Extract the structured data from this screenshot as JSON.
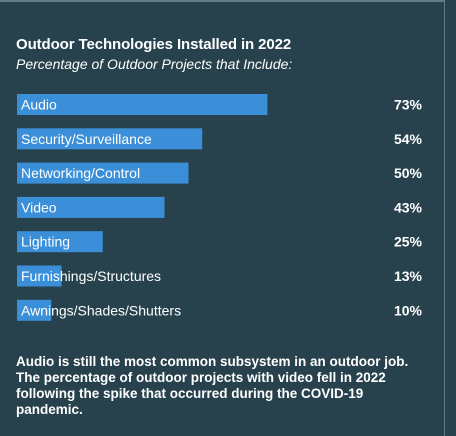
{
  "colors": {
    "background": "#27424d",
    "bar": "#3a8fd8",
    "text": "#ffffff",
    "rule": "#5f7d88"
  },
  "chart_data": {
    "type": "bar",
    "orientation": "horizontal",
    "title": "Outdoor Technologies Installed in 2022",
    "subtitle": "Percentage of Outdoor Projects that Include:",
    "categories": [
      "Audio",
      "Security/Surveillance",
      "Networking/Control",
      "Video",
      "Lighting",
      "Furnishings/Structures",
      "Awnings/Shades/Shutters"
    ],
    "values": [
      73,
      54,
      50,
      43,
      25,
      13,
      10
    ],
    "value_labels": [
      "73%",
      "54%",
      "50%",
      "43%",
      "25%",
      "13%",
      "10%"
    ],
    "xlim": [
      0,
      100
    ],
    "grid": false,
    "legend": "none"
  },
  "footnote": "Audio is still the most common subsystem in an outdoor job. The percentage of outdoor projects with video fell in 2022 following the spike that occurred during the COVID-19 pandemic."
}
